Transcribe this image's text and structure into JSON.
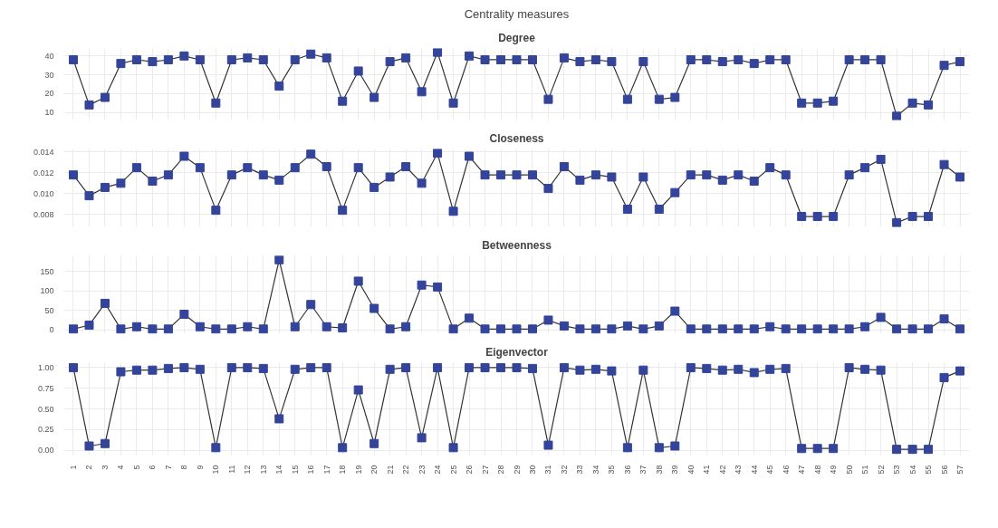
{
  "chart_data": [
    {
      "type": "line",
      "title": "Degree",
      "annotations": [
        "Centrality measures"
      ],
      "tick_labels": "y",
      "grid": true,
      "marker": "square",
      "line_style": "solid",
      "categories": [
        "1",
        "2",
        "3",
        "4",
        "5",
        "6",
        "7",
        "8",
        "9",
        "10",
        "11",
        "12",
        "13",
        "14",
        "15",
        "16",
        "17",
        "18",
        "19",
        "20",
        "21",
        "22",
        "23",
        "24",
        "25",
        "26",
        "27",
        "28",
        "29",
        "30",
        "31",
        "32",
        "33",
        "34",
        "35",
        "36",
        "37",
        "38",
        "39",
        "40",
        "41",
        "42",
        "43",
        "44",
        "45",
        "46",
        "47",
        "48",
        "49",
        "50",
        "51",
        "52",
        "53",
        "54",
        "55",
        "56",
        "57"
      ],
      "ylim": [
        6,
        44
      ],
      "yticks": [
        10,
        20,
        30,
        40
      ],
      "series": [
        {
          "color": "#33449a",
          "values": [
            38,
            14,
            18,
            36,
            38,
            37,
            38,
            40,
            38,
            15,
            38,
            39,
            38,
            24,
            38,
            41,
            39,
            16,
            32,
            18,
            37,
            39,
            21,
            42,
            15,
            40,
            38,
            38,
            38,
            38,
            17,
            39,
            37,
            38,
            37,
            17,
            37,
            17,
            18,
            38,
            38,
            37,
            38,
            36,
            38,
            38,
            15,
            15,
            16,
            38,
            38,
            38,
            8,
            15,
            14,
            35,
            37
          ]
        }
      ]
    },
    {
      "type": "line",
      "title": "Closeness",
      "tick_labels": "y",
      "grid": true,
      "marker": "square",
      "line_style": "solid",
      "categories": [
        "1",
        "2",
        "3",
        "4",
        "5",
        "6",
        "7",
        "8",
        "9",
        "10",
        "11",
        "12",
        "13",
        "14",
        "15",
        "16",
        "17",
        "18",
        "19",
        "20",
        "21",
        "22",
        "23",
        "24",
        "25",
        "26",
        "27",
        "28",
        "29",
        "30",
        "31",
        "32",
        "33",
        "34",
        "35",
        "36",
        "37",
        "38",
        "39",
        "40",
        "41",
        "42",
        "43",
        "44",
        "45",
        "46",
        "47",
        "48",
        "49",
        "50",
        "51",
        "52",
        "53",
        "54",
        "55",
        "56",
        "57"
      ],
      "ylim": [
        0.0068,
        0.0143
      ],
      "yticks": [
        {
          "value": 0.008,
          "label": "0.008"
        },
        {
          "value": 0.01,
          "label": "0.010"
        },
        {
          "value": 0.012,
          "label": "0.012"
        },
        {
          "value": 0.014,
          "label": "0.014"
        }
      ],
      "series": [
        {
          "color": "#33449a",
          "values": [
            0.0118,
            0.0098,
            0.0106,
            0.011,
            0.0125,
            0.0112,
            0.0118,
            0.0136,
            0.0125,
            0.0084,
            0.0118,
            0.0125,
            0.0118,
            0.0113,
            0.0125,
            0.0138,
            0.0126,
            0.0084,
            0.0125,
            0.0106,
            0.0116,
            0.0126,
            0.011,
            0.0139,
            0.0083,
            0.0136,
            0.0118,
            0.0118,
            0.0118,
            0.0118,
            0.0105,
            0.0126,
            0.0113,
            0.0118,
            0.0116,
            0.0085,
            0.0116,
            0.0085,
            0.0101,
            0.0118,
            0.0118,
            0.0113,
            0.0118,
            0.0112,
            0.0125,
            0.0118,
            0.0078,
            0.0078,
            0.0078,
            0.0118,
            0.0125,
            0.0133,
            0.0072,
            0.0078,
            0.0078,
            0.0128,
            0.0116
          ]
        }
      ]
    },
    {
      "type": "line",
      "title": "Betweenness",
      "tick_labels": "y",
      "grid": true,
      "marker": "square",
      "line_style": "solid",
      "categories": [
        "1",
        "2",
        "3",
        "4",
        "5",
        "6",
        "7",
        "8",
        "9",
        "10",
        "11",
        "12",
        "13",
        "14",
        "15",
        "16",
        "17",
        "18",
        "19",
        "20",
        "21",
        "22",
        "23",
        "24",
        "25",
        "26",
        "27",
        "28",
        "29",
        "30",
        "31",
        "32",
        "33",
        "34",
        "35",
        "36",
        "37",
        "38",
        "39",
        "40",
        "41",
        "42",
        "43",
        "44",
        "45",
        "46",
        "47",
        "48",
        "49",
        "50",
        "51",
        "52",
        "53",
        "54",
        "55",
        "56",
        "57"
      ],
      "ylim": [
        -10,
        190
      ],
      "yticks": [
        0,
        50,
        100,
        150
      ],
      "series": [
        {
          "color": "#33449a",
          "values": [
            2,
            12,
            68,
            2,
            8,
            2,
            2,
            40,
            8,
            2,
            2,
            8,
            2,
            180,
            8,
            65,
            8,
            5,
            125,
            55,
            2,
            8,
            115,
            110,
            2,
            30,
            2,
            2,
            2,
            2,
            25,
            10,
            2,
            2,
            2,
            10,
            2,
            10,
            48,
            2,
            2,
            2,
            2,
            2,
            8,
            2,
            2,
            2,
            2,
            2,
            8,
            32,
            2,
            2,
            2,
            28,
            2
          ]
        }
      ]
    },
    {
      "type": "line",
      "title": "Eigenvector",
      "grid": true,
      "marker": "square",
      "line_style": "solid",
      "categories": [
        "1",
        "2",
        "3",
        "4",
        "5",
        "6",
        "7",
        "8",
        "9",
        "10",
        "11",
        "12",
        "13",
        "14",
        "15",
        "16",
        "17",
        "18",
        "19",
        "20",
        "21",
        "22",
        "23",
        "24",
        "25",
        "26",
        "27",
        "28",
        "29",
        "30",
        "31",
        "32",
        "33",
        "34",
        "35",
        "36",
        "37",
        "38",
        "39",
        "40",
        "41",
        "42",
        "43",
        "44",
        "45",
        "46",
        "47",
        "48",
        "49",
        "50",
        "51",
        "52",
        "53",
        "54",
        "55",
        "56",
        "57"
      ],
      "ylim": [
        -0.06,
        1.06
      ],
      "yticks": [
        {
          "value": 0,
          "label": "0.00"
        },
        {
          "value": 0.25,
          "label": "0.25"
        },
        {
          "value": 0.5,
          "label": "0.50"
        },
        {
          "value": 0.75,
          "label": "0.75"
        },
        {
          "value": 1,
          "label": "1.00"
        }
      ],
      "series": [
        {
          "color": "#33449a",
          "values": [
            1.0,
            0.05,
            0.08,
            0.95,
            0.97,
            0.97,
            0.99,
            1.0,
            0.98,
            0.03,
            1.0,
            1.0,
            0.99,
            0.38,
            0.98,
            1.0,
            1.0,
            0.03,
            0.73,
            0.08,
            0.98,
            1.0,
            0.15,
            1.0,
            0.03,
            1.0,
            1.0,
            1.0,
            1.0,
            0.99,
            0.06,
            1.0,
            0.97,
            0.98,
            0.96,
            0.03,
            0.97,
            0.03,
            0.05,
            1.0,
            0.99,
            0.97,
            0.98,
            0.94,
            0.98,
            0.99,
            0.02,
            0.02,
            0.02,
            1.0,
            0.98,
            0.97,
            0.01,
            0.01,
            0.01,
            0.88,
            0.96
          ]
        }
      ]
    }
  ]
}
